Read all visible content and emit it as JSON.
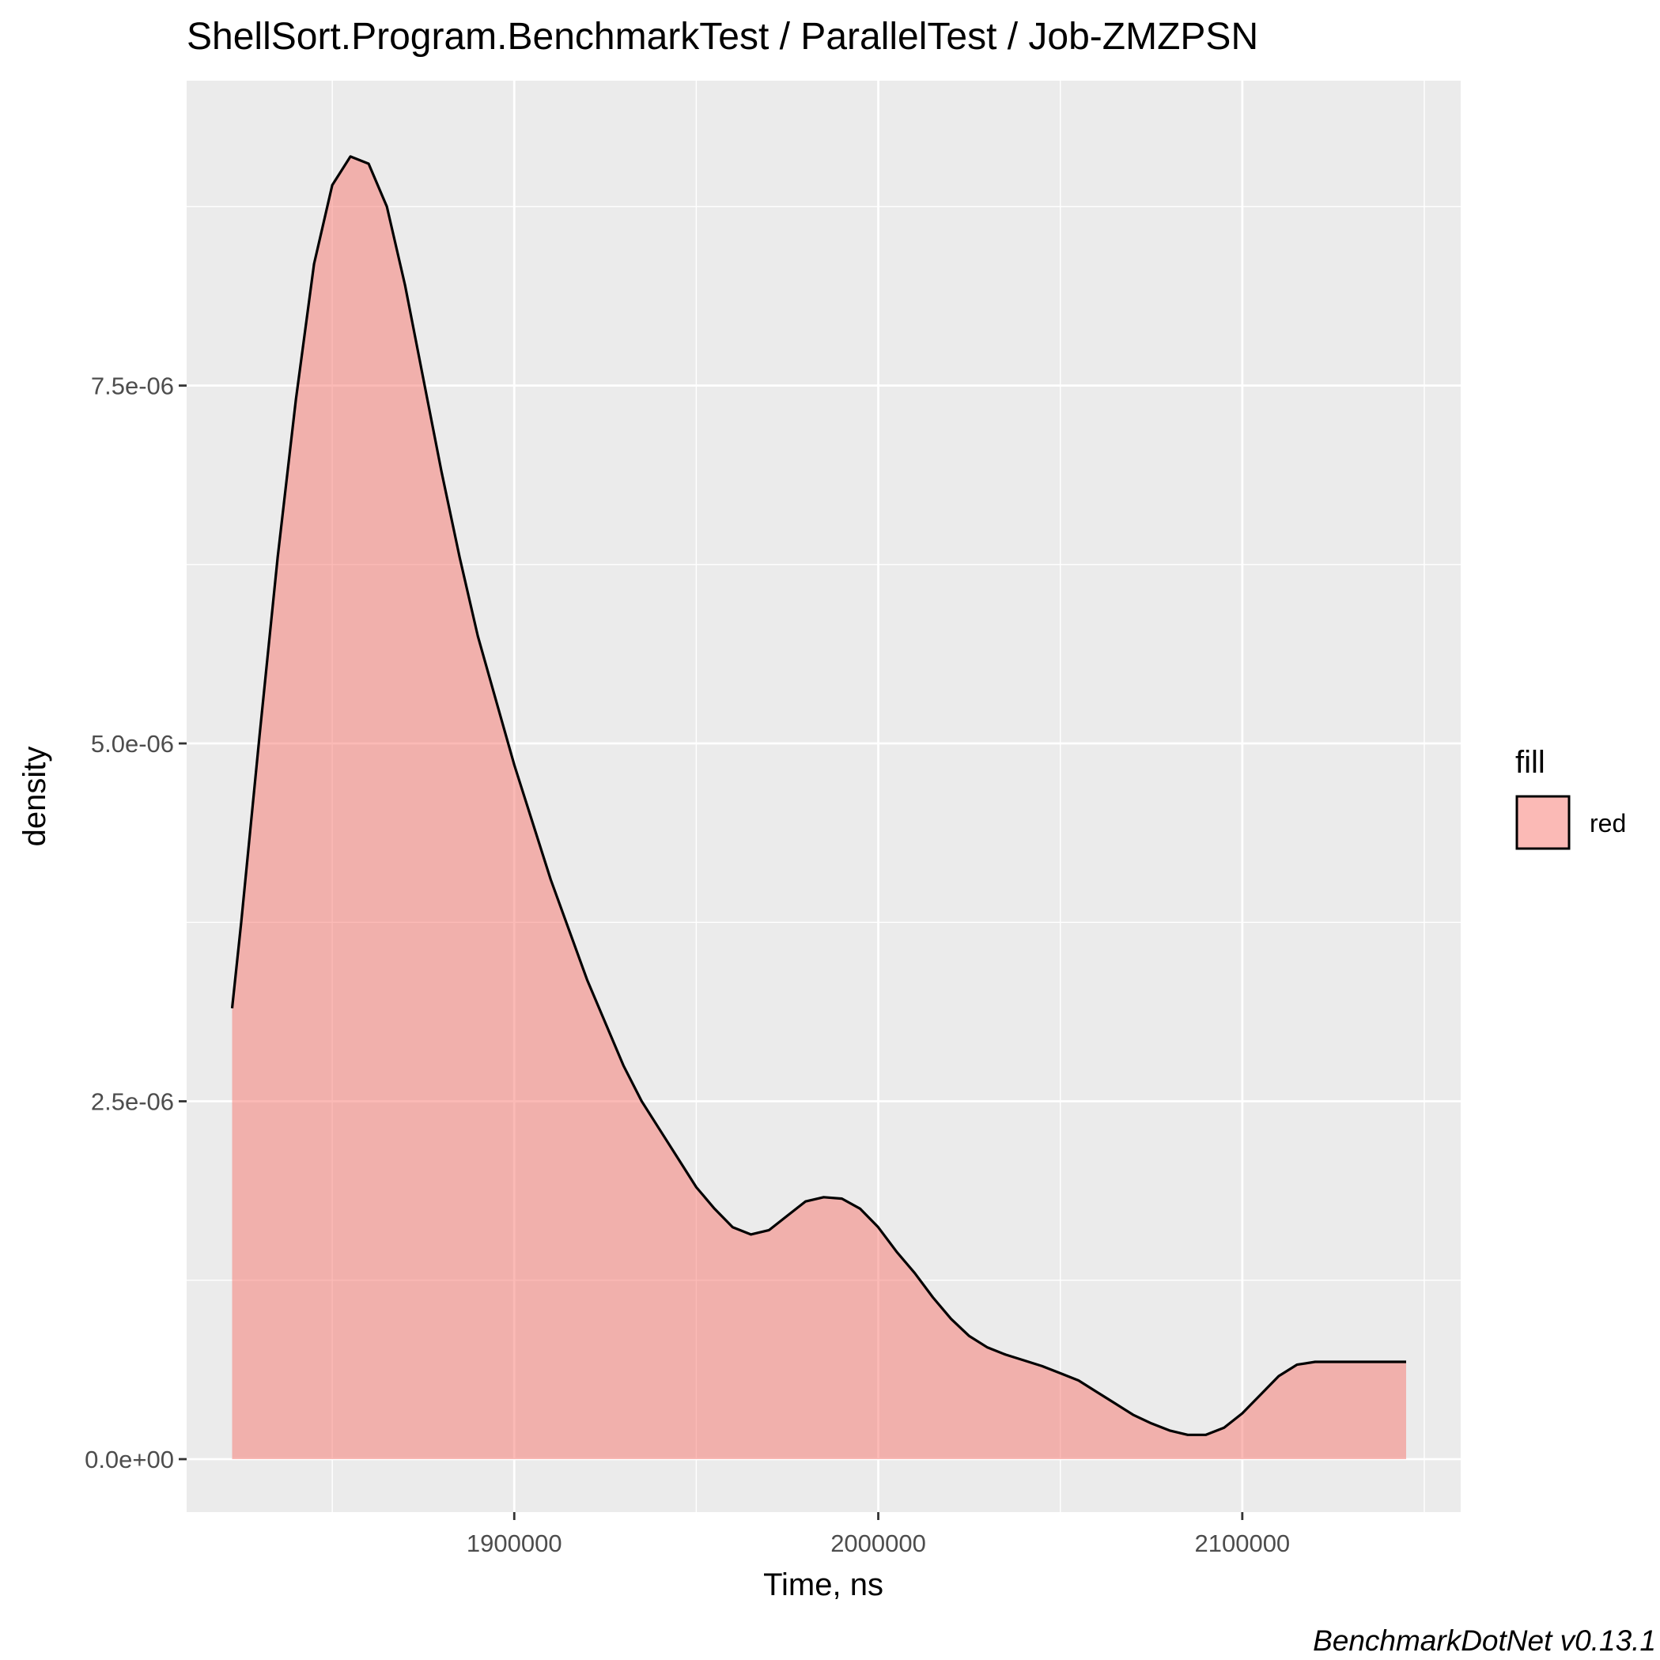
{
  "chart_data": {
    "type": "area",
    "subtype": "density",
    "title": "ShellSort.Program.BenchmarkTest / ParallelTest / Job-ZMZPSN",
    "xlabel": "Time, ns",
    "ylabel": "density",
    "caption": "BenchmarkDotNet v0.13.1",
    "xlim": [
      1810000,
      2160000
    ],
    "ylim": [
      -3.7e-07,
      9.63e-06
    ],
    "x_ticks": [
      {
        "value": 1900000,
        "label": "1900000"
      },
      {
        "value": 2000000,
        "label": "2000000"
      },
      {
        "value": 2100000,
        "label": "2100000"
      }
    ],
    "x_minor_ticks": [
      1850000,
      1950000,
      2050000,
      2150000
    ],
    "y_ticks": [
      {
        "value": 0,
        "label": "0.0e+00"
      },
      {
        "value": 2.5e-06,
        "label": "2.5e-06"
      },
      {
        "value": 5e-06,
        "label": "5.0e-06"
      },
      {
        "value": 7.5e-06,
        "label": "7.5e-06"
      }
    ],
    "y_minor_ticks": [
      1.25e-06,
      3.75e-06,
      6.25e-06,
      8.75e-06
    ],
    "grid": true,
    "legend": {
      "title": "fill",
      "placement": "right",
      "entries": [
        {
          "label": "red",
          "color": "#F8766D"
        }
      ]
    },
    "colors": {
      "fill": "#F8766D",
      "fill_opacity": 0.5,
      "line": "#000000",
      "panel": "#EBEBEB",
      "grid": "#FFFFFF"
    },
    "series": [
      {
        "name": "red",
        "x": [
          1822500,
          1825000,
          1830000,
          1835000,
          1840000,
          1845000,
          1850000,
          1855000,
          1860000,
          1865000,
          1870000,
          1875000,
          1880000,
          1885000,
          1890000,
          1895000,
          1900000,
          1905000,
          1910000,
          1915000,
          1920000,
          1925000,
          1930000,
          1935000,
          1940000,
          1945000,
          1950000,
          1955000,
          1960000,
          1965000,
          1970000,
          1975000,
          1980000,
          1985000,
          1990000,
          1995000,
          2000000,
          2005000,
          2010000,
          2015000,
          2020000,
          2025000,
          2030000,
          2035000,
          2040000,
          2045000,
          2050000,
          2055000,
          2060000,
          2065000,
          2070000,
          2075000,
          2080000,
          2085000,
          2090000,
          2095000,
          2100000,
          2105000,
          2110000,
          2115000,
          2120000,
          2125000,
          2130000,
          2135000,
          2140000,
          2145000
        ],
        "y": [
          3.15e-06,
          3.75e-06,
          5.05e-06,
          6.3e-06,
          7.4e-06,
          8.35e-06,
          8.9e-06,
          9.1e-06,
          9.05e-06,
          8.75e-06,
          8.2e-06,
          7.55e-06,
          6.9e-06,
          6.3e-06,
          5.75e-06,
          5.3e-06,
          4.85e-06,
          4.45e-06,
          4.05e-06,
          3.7e-06,
          3.35e-06,
          3.05e-06,
          2.75e-06,
          2.5e-06,
          2.3e-06,
          2.1e-06,
          1.9e-06,
          1.75e-06,
          1.62e-06,
          1.57e-06,
          1.6e-06,
          1.7e-06,
          1.8e-06,
          1.83e-06,
          1.82e-06,
          1.75e-06,
          1.62e-06,
          1.45e-06,
          1.3e-06,
          1.13e-06,
          9.8e-07,
          8.6e-07,
          7.8e-07,
          7.3e-07,
          6.9e-07,
          6.5e-07,
          6e-07,
          5.5e-07,
          4.7e-07,
          3.9e-07,
          3.1e-07,
          2.5e-07,
          2e-07,
          1.7e-07,
          1.7e-07,
          2.2e-07,
          3.2e-07,
          4.5e-07,
          5.8e-07,
          6.6e-07,
          6.8e-07,
          6.8e-07,
          6.8e-07,
          6.8e-07,
          6.8e-07,
          6.8e-07
        ]
      }
    ]
  }
}
